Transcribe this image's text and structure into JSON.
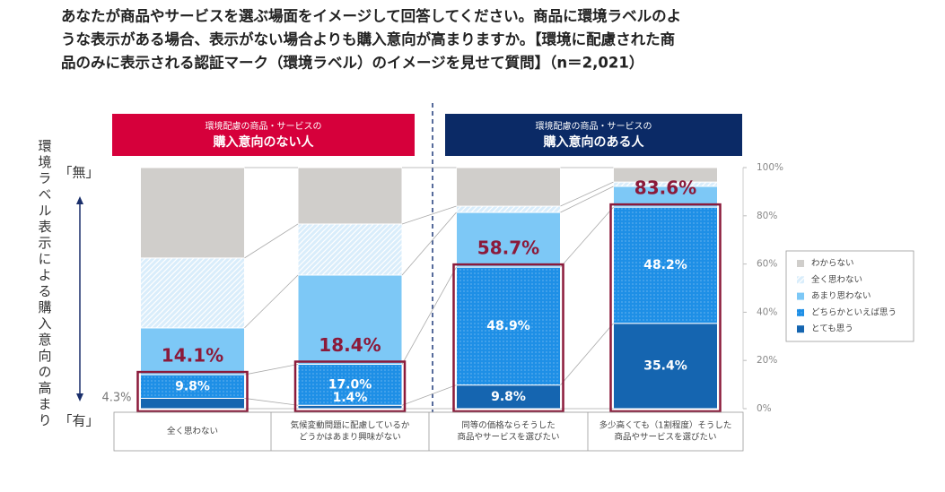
{
  "chart_data": {
    "type": "stacked-bar",
    "title": [
      "あなたが商品やサービスを選ぶ場面をイメージして回答してください。商品に環境ラベルのよ",
      "うな表示がある場合、表示がない場合よりも購入意向が高まりますか。【環境に配慮された商",
      "品のみに表示される認証マーク（環境ラベル）のイメージを見せて質問】（n＝2,021）"
    ],
    "panel_labels": [
      {
        "sub": "環境配慮の商品・サービスの",
        "main": "購入意向のない人",
        "color": "#d6003b"
      },
      {
        "sub": "環境配慮の商品・サービスの",
        "main": "購入意向のある人",
        "color": "#0b2a66"
      }
    ],
    "side_label": "環境ラベル表示による購入意向の高まり",
    "axis_top_label": "「無」",
    "axis_bottom_label": "「有」",
    "categories": [
      [
        "全く思わない"
      ],
      [
        "気候変動問題に配慮しているか",
        "どうかはあまり興味がない"
      ],
      [
        "同等の価格ならそうした",
        "商品やサービスを選びたい"
      ],
      [
        "多少高くても（1割程度）そうした",
        "商品やサービスを選びたい"
      ]
    ],
    "series": [
      {
        "name": "とても思う",
        "color": "#1565b0",
        "values": [
          4.3,
          1.4,
          9.8,
          35.4
        ],
        "value_labels": [
          "4.3%",
          "1.4%",
          "9.8%",
          "35.4%"
        ]
      },
      {
        "name": "どちらかといえば思う",
        "color": "#1e8fe6",
        "pattern": "dots",
        "values": [
          9.8,
          17.0,
          48.9,
          48.2
        ],
        "value_labels": [
          "9.8%",
          "17.0%",
          "48.9%",
          "48.2%"
        ]
      },
      {
        "name": "あまり思わない",
        "color": "#7dc8f6",
        "values": [
          19.4,
          37.0,
          22.7,
          8.6
        ]
      },
      {
        "name": "全く思わない",
        "color": "#d9edfb",
        "pattern": "hatch",
        "values": [
          29.0,
          21.2,
          2.6,
          1.8
        ]
      },
      {
        "name": "わからない",
        "color": "#d0cecb",
        "values": [
          37.5,
          23.4,
          16.0,
          6.0
        ]
      }
    ],
    "totals": {
      "color": "#8b1a3a",
      "values": [
        14.1,
        18.4,
        58.7,
        83.6
      ],
      "value_labels": [
        "14.1%",
        "18.4%",
        "58.7%",
        "83.6%"
      ]
    },
    "ylim": [
      0,
      100
    ],
    "yticks": [
      {
        "value": 0,
        "label": "0%"
      },
      {
        "value": 20,
        "label": "20%"
      },
      {
        "value": 40,
        "label": "40%"
      },
      {
        "value": 60,
        "label": "60%"
      },
      {
        "value": 80,
        "label": "80%"
      },
      {
        "value": 100,
        "label": "100%"
      }
    ]
  }
}
